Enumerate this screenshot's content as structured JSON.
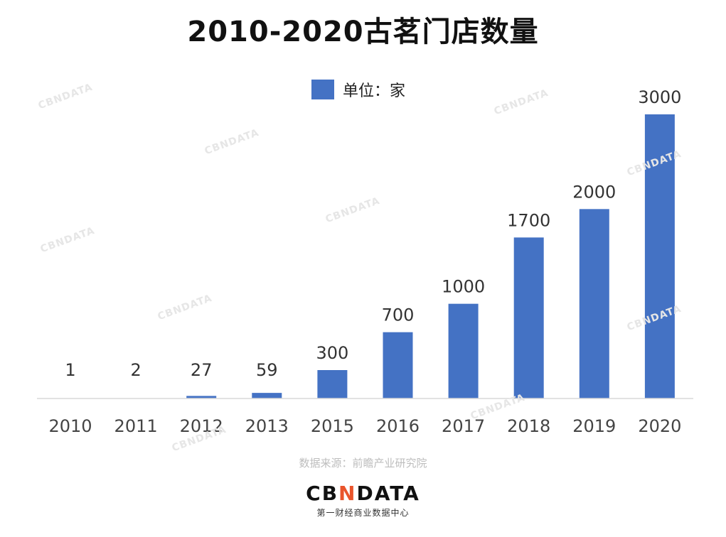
{
  "title": "2010-2020古茗门店数量",
  "legend": {
    "label": "单位：家",
    "color": "#4472C4"
  },
  "source": "数据来源：前瞻产业研究院",
  "logo": {
    "prefix": "CB",
    "mark": "N",
    "suffix": "DATA",
    "subtitle": "第一财经商业数据中心"
  },
  "watermark": "CBNDATA",
  "chart_data": {
    "type": "bar",
    "title": "2010-2020古茗门店数量",
    "categories": [
      "2010",
      "2011",
      "2012",
      "2013",
      "2015",
      "2016",
      "2017",
      "2018",
      "2019",
      "2020"
    ],
    "series": [
      {
        "name": "单位：家",
        "values": [
          1,
          2,
          27,
          59,
          300,
          700,
          1000,
          1700,
          2000,
          3000
        ]
      }
    ],
    "ylim": [
      0,
      3000
    ],
    "grid": false,
    "legend_position": "top-center",
    "bar_color": "#4472C4"
  }
}
